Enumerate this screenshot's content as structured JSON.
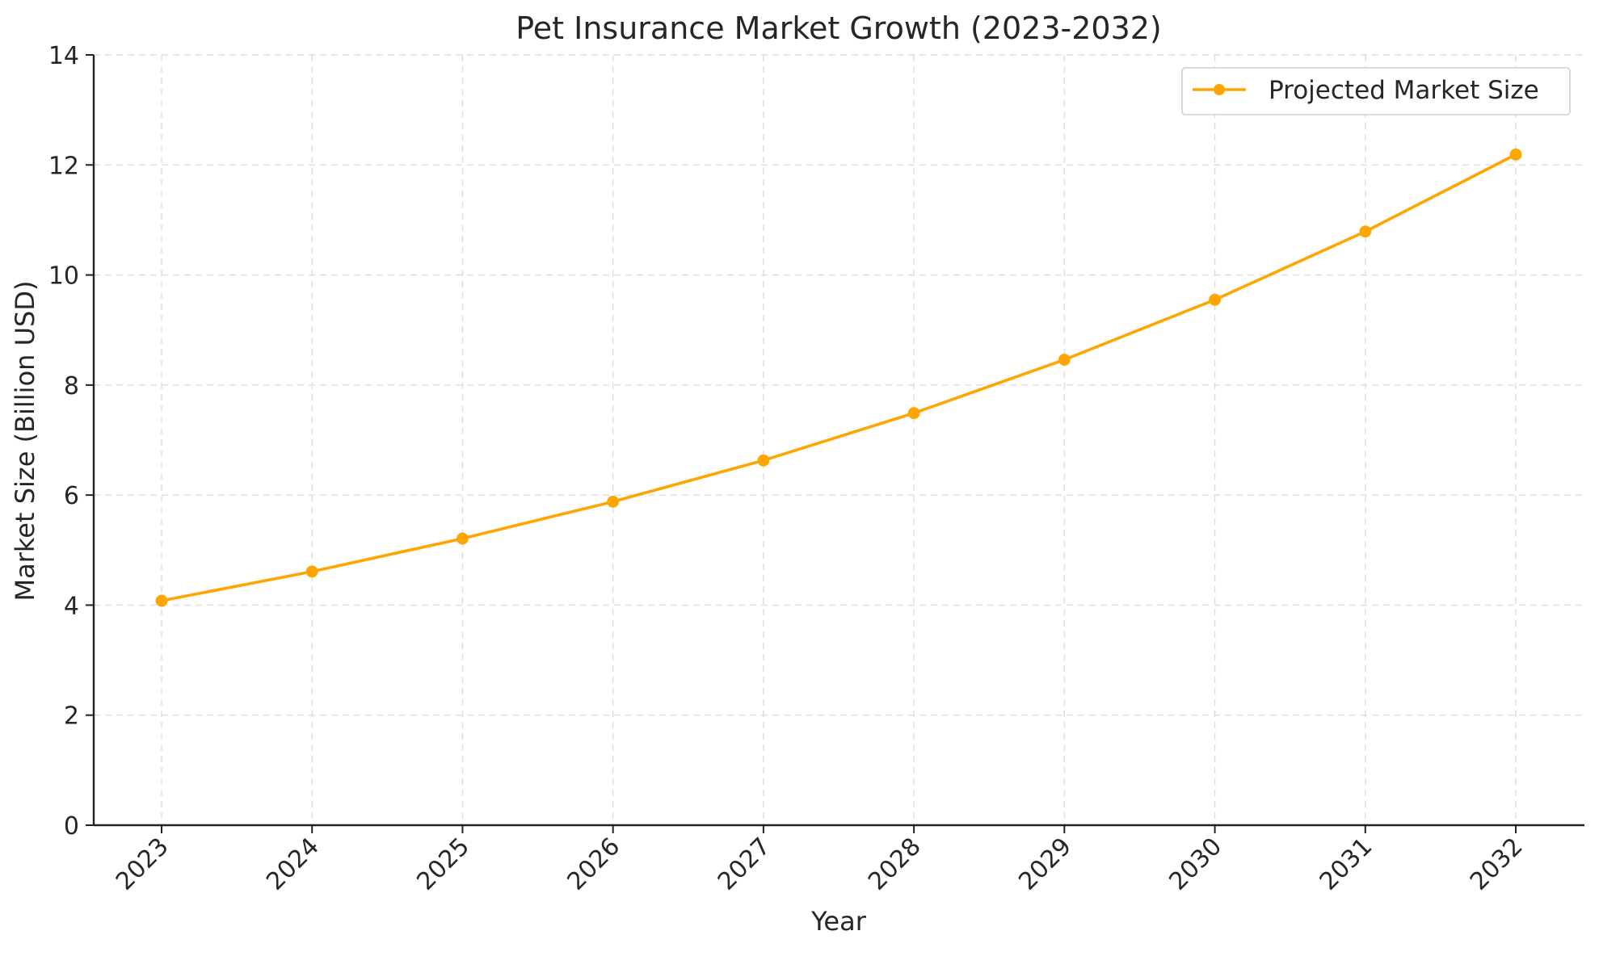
{
  "chart_data": {
    "type": "line",
    "title": "Pet Insurance Market Growth (2023-2032)",
    "xlabel": "Year",
    "ylabel": "Market Size (Billion USD)",
    "x": [
      "2023",
      "2024",
      "2025",
      "2026",
      "2027",
      "2028",
      "2029",
      "2030",
      "2031",
      "2032"
    ],
    "series": [
      {
        "name": "Projected Market Size",
        "color": "#FFA500",
        "marker": "circle",
        "values": [
          4.08,
          4.61,
          5.21,
          5.88,
          6.63,
          7.49,
          8.46,
          9.55,
          10.79,
          12.19
        ]
      }
    ],
    "ylim": [
      0,
      14
    ],
    "yticks": [
      "0",
      "2",
      "4",
      "6",
      "8",
      "10",
      "12",
      "14"
    ],
    "grid": true,
    "legend_position": "top-right"
  }
}
